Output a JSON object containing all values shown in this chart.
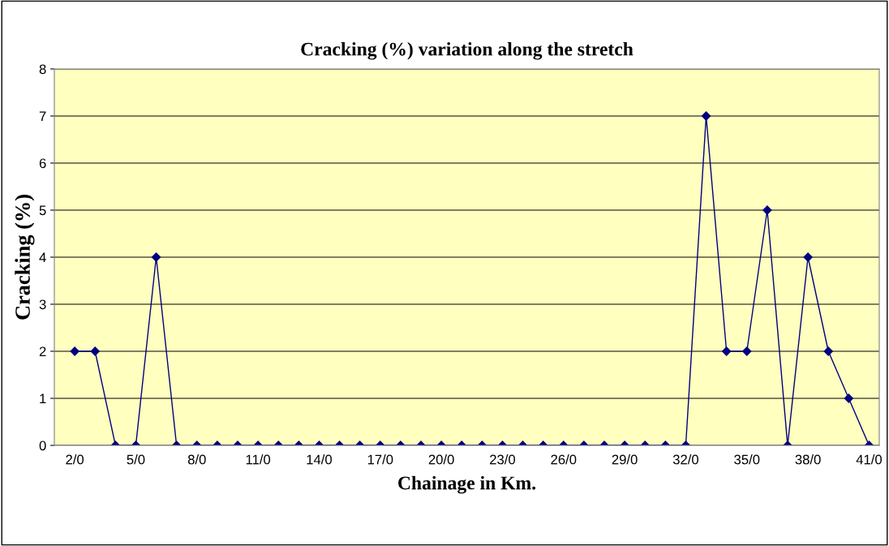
{
  "chart_data": {
    "type": "line",
    "title": "Cracking (%) variation along the stretch",
    "xlabel": "Chainage in Km.",
    "ylabel": "Cracking (%)",
    "categories": [
      "2/0",
      null,
      null,
      "5/0",
      null,
      null,
      "8/0",
      null,
      null,
      "11/0",
      null,
      null,
      "14/0",
      null,
      null,
      "17/0",
      null,
      null,
      "20/0",
      null,
      null,
      "23/0",
      null,
      null,
      "26/0",
      null,
      null,
      "29/0",
      null,
      null,
      "32/0",
      null,
      null,
      "35/0",
      null,
      null,
      "38/0",
      null,
      null,
      "41/0"
    ],
    "series": [
      {
        "color": "#000080",
        "values": [
          2,
          2,
          0,
          0,
          4,
          0,
          0,
          0,
          0,
          0,
          0,
          0,
          0,
          0,
          0,
          0,
          0,
          0,
          0,
          0,
          0,
          0,
          0,
          0,
          0,
          0,
          0,
          0,
          0,
          0,
          0,
          7,
          2,
          2,
          5,
          0,
          4,
          2,
          1,
          0
        ]
      }
    ],
    "ylim": [
      0,
      8
    ],
    "yticks": [
      0,
      1,
      2,
      3,
      4,
      5,
      6,
      7,
      8
    ],
    "grid": "y",
    "marker": "diamond",
    "line_style": "solid",
    "legend": false
  }
}
